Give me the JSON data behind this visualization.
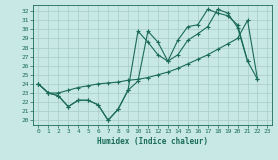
{
  "xlabel": "Humidex (Indice chaleur)",
  "xlim": [
    -0.5,
    23.5
  ],
  "ylim": [
    19.5,
    32.7
  ],
  "yticks": [
    20,
    21,
    22,
    23,
    24,
    25,
    26,
    27,
    28,
    29,
    30,
    31,
    32
  ],
  "xticks": [
    0,
    1,
    2,
    3,
    4,
    5,
    6,
    7,
    8,
    9,
    10,
    11,
    12,
    13,
    14,
    15,
    16,
    17,
    18,
    19,
    20,
    21,
    22,
    23
  ],
  "bg_color": "#c8e8e5",
  "grid_color": "#a8ccc9",
  "line_color": "#1a6b5a",
  "line1_y": [
    24.0,
    23.0,
    22.7,
    21.5,
    22.2,
    22.2,
    21.7,
    20.0,
    21.2,
    23.3,
    24.3,
    29.8,
    28.6,
    26.5,
    27.2,
    28.8,
    29.5,
    30.3,
    32.2,
    31.8,
    30.2,
    26.5,
    null,
    null
  ],
  "line2_y": [
    24.0,
    23.0,
    23.0,
    23.3,
    23.6,
    23.8,
    24.0,
    24.1,
    24.2,
    24.4,
    24.5,
    24.7,
    25.0,
    25.3,
    25.7,
    26.2,
    26.7,
    27.2,
    27.8,
    28.4,
    29.0,
    31.0,
    24.5,
    null
  ],
  "line3_y": [
    24.0,
    23.0,
    22.7,
    21.5,
    22.2,
    22.2,
    21.7,
    20.0,
    21.2,
    23.3,
    29.8,
    28.6,
    27.2,
    26.5,
    28.8,
    30.3,
    30.5,
    32.2,
    31.8,
    31.5,
    30.5,
    26.5,
    24.5,
    null
  ]
}
